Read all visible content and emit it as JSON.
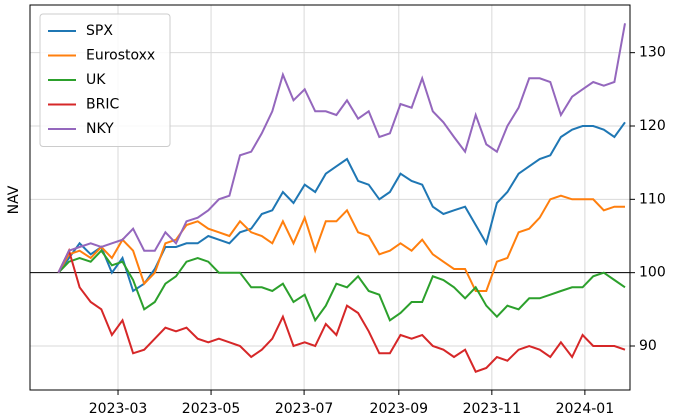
{
  "chart_data": {
    "type": "line",
    "y_label": "NAV",
    "y_axis_side": "right",
    "legend": "upper left",
    "grid": true,
    "hline": 100,
    "xlim": [
      2023.004,
      2024.081
    ],
    "ylim": [
      84,
      136.5
    ],
    "xticks": [
      {
        "value": 2023.162,
        "label": "2023-03"
      },
      {
        "value": 2023.329,
        "label": "2023-05"
      },
      {
        "value": 2023.496,
        "label": "2023-07"
      },
      {
        "value": 2023.666,
        "label": "2023-09"
      },
      {
        "value": 2023.833,
        "label": "2023-11"
      },
      {
        "value": 2024.0,
        "label": "2024-01"
      }
    ],
    "yticks": [
      90,
      100,
      110,
      120,
      130
    ],
    "x": [
      2023.055,
      2023.074,
      2023.093,
      2023.113,
      2023.132,
      2023.151,
      2023.17,
      2023.189,
      2023.209,
      2023.228,
      2023.247,
      2023.266,
      2023.285,
      2023.305,
      2023.324,
      2023.343,
      2023.362,
      2023.381,
      2023.401,
      2023.42,
      2023.439,
      2023.458,
      2023.477,
      2023.497,
      2023.516,
      2023.535,
      2023.554,
      2023.573,
      2023.593,
      2023.612,
      2023.631,
      2023.65,
      2023.669,
      2023.689,
      2023.708,
      2023.727,
      2023.746,
      2023.765,
      2023.785,
      2023.804,
      2023.823,
      2023.842,
      2023.861,
      2023.881,
      2023.9,
      2023.919,
      2023.938,
      2023.957,
      2023.977,
      2023.996,
      2024.015,
      2024.034,
      2024.053,
      2024.072
    ],
    "series": [
      {
        "name": "SPX",
        "color": "#1f77b4",
        "values": [
          100,
          102,
          104,
          102.5,
          103.5,
          100,
          102,
          97.5,
          98.5,
          100.5,
          103.5,
          103.5,
          104,
          104,
          105,
          104.5,
          104,
          105.5,
          106,
          108,
          108.5,
          111,
          109.5,
          112,
          111,
          113.5,
          114.5,
          115.5,
          112.5,
          112,
          110,
          111,
          113.5,
          112.5,
          112,
          109,
          108,
          108.5,
          109,
          106.5,
          104,
          109.5,
          111,
          113.5,
          114.5,
          115.5,
          116,
          118.5,
          119.5,
          120,
          120,
          119.5,
          118.5,
          120.5
        ]
      },
      {
        "name": "Eurostoxx",
        "color": "#ff7f0e",
        "values": [
          100,
          102.5,
          103,
          102,
          103.5,
          102,
          104.5,
          103,
          98.5,
          100,
          104,
          104.5,
          106.5,
          107,
          106,
          105.5,
          105,
          107,
          105.5,
          105,
          104,
          107,
          104,
          107.5,
          103,
          107,
          107,
          108.5,
          105.5,
          105,
          102.5,
          103,
          104,
          103,
          104.5,
          102.5,
          101.5,
          100.5,
          100.5,
          97.5,
          97.5,
          101.5,
          102,
          105.5,
          106,
          107.5,
          110,
          110.5,
          110,
          110,
          110,
          108.5,
          109,
          109
        ]
      },
      {
        "name": "UK",
        "color": "#2ca02c",
        "values": [
          100,
          101.5,
          102,
          101.5,
          103,
          101,
          101.5,
          99,
          95,
          96,
          98.5,
          99.5,
          101.5,
          102,
          101.5,
          100,
          100,
          100,
          98,
          98,
          97.5,
          98.5,
          96,
          97,
          93.5,
          95.5,
          98.5,
          98,
          99.5,
          97.5,
          97,
          93.5,
          94.5,
          96,
          96,
          99.5,
          99,
          98,
          96.5,
          98,
          95.5,
          94,
          95.5,
          95,
          96.5,
          96.5,
          97,
          97.5,
          98,
          98,
          99.5,
          100,
          99,
          98
        ]
      },
      {
        "name": "BRIC",
        "color": "#d62728",
        "values": [
          100,
          103,
          98,
          96,
          95,
          91.5,
          93.5,
          89,
          89.5,
          91,
          92.5,
          92,
          92.5,
          91,
          90.5,
          91,
          90.5,
          90,
          88.5,
          89.5,
          91,
          94,
          90,
          90.5,
          90,
          93,
          91.5,
          95.5,
          94.5,
          92,
          89,
          89,
          91.5,
          91,
          91.5,
          90,
          89.5,
          88.5,
          89.5,
          86.5,
          87,
          88.5,
          88,
          89.5,
          90,
          89.5,
          88.5,
          90.5,
          88.5,
          91.5,
          90,
          90,
          90,
          89.5
        ]
      },
      {
        "name": "NKY",
        "color": "#9467bd",
        "values": [
          100,
          103,
          103.5,
          104,
          103.5,
          104,
          104.5,
          106,
          103,
          103,
          105.5,
          104,
          107,
          107.5,
          108.5,
          110,
          110.5,
          116,
          116.5,
          119,
          122,
          127,
          123.5,
          125,
          122,
          122,
          121.5,
          123.5,
          121,
          122,
          118.5,
          119,
          123,
          122.5,
          126.5,
          122,
          120.5,
          118.5,
          116.5,
          121.5,
          117.5,
          116.5,
          120,
          122.5,
          126.5,
          126.5,
          126,
          121.5,
          124,
          125,
          126,
          125.5,
          126,
          134
        ]
      }
    ]
  }
}
